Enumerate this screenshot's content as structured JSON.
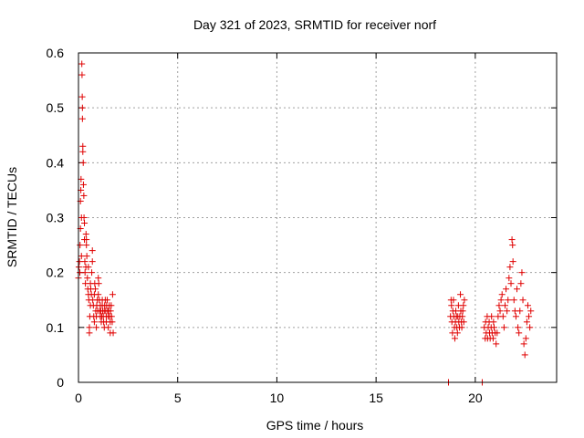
{
  "chart_data": {
    "type": "scatter",
    "title": "Day 321 of 2023, SRMTID for receiver norf",
    "xlabel": "GPS time / hours",
    "ylabel": "SRMTID / TECUs",
    "xlim": [
      0,
      24.1
    ],
    "ylim": [
      0,
      0.6
    ],
    "x_ticks": [
      0,
      5,
      10,
      15,
      20
    ],
    "x_tick_labels": [
      "0",
      "5",
      "10",
      "15",
      "20"
    ],
    "y_ticks": [
      0,
      0.1,
      0.2,
      0.3,
      0.4,
      0.5,
      0.6
    ],
    "y_tick_labels": [
      "0",
      "0.1",
      "0.2",
      "0.3",
      "0.4",
      "0.5",
      "0.6"
    ],
    "grid": true,
    "marker": "+",
    "marker_color": "#e00000",
    "series": [
      {
        "name": "SRMTID",
        "points": [
          [
            0.0,
            0.19
          ],
          [
            0.02,
            0.21
          ],
          [
            0.05,
            0.22
          ],
          [
            0.07,
            0.2
          ],
          [
            0.08,
            0.25
          ],
          [
            0.1,
            0.28
          ],
          [
            0.1,
            0.33
          ],
          [
            0.12,
            0.35
          ],
          [
            0.13,
            0.37
          ],
          [
            0.15,
            0.3
          ],
          [
            0.15,
            0.23
          ],
          [
            0.17,
            0.58
          ],
          [
            0.18,
            0.56
          ],
          [
            0.19,
            0.52
          ],
          [
            0.2,
            0.5
          ],
          [
            0.2,
            0.48
          ],
          [
            0.22,
            0.43
          ],
          [
            0.22,
            0.42
          ],
          [
            0.24,
            0.4
          ],
          [
            0.25,
            0.36
          ],
          [
            0.27,
            0.34
          ],
          [
            0.28,
            0.3
          ],
          [
            0.3,
            0.29
          ],
          [
            0.3,
            0.26
          ],
          [
            0.32,
            0.22
          ],
          [
            0.33,
            0.2
          ],
          [
            0.35,
            0.18
          ],
          [
            0.37,
            0.21
          ],
          [
            0.38,
            0.27
          ],
          [
            0.4,
            0.26
          ],
          [
            0.4,
            0.25
          ],
          [
            0.42,
            0.23
          ],
          [
            0.45,
            0.19
          ],
          [
            0.47,
            0.17
          ],
          [
            0.5,
            0.16
          ],
          [
            0.5,
            0.21
          ],
          [
            0.52,
            0.15
          ],
          [
            0.55,
            0.1
          ],
          [
            0.55,
            0.09
          ],
          [
            0.57,
            0.12
          ],
          [
            0.6,
            0.14
          ],
          [
            0.6,
            0.18
          ],
          [
            0.62,
            0.17
          ],
          [
            0.65,
            0.16
          ],
          [
            0.67,
            0.2
          ],
          [
            0.7,
            0.24
          ],
          [
            0.7,
            0.22
          ],
          [
            0.72,
            0.15
          ],
          [
            0.75,
            0.14
          ],
          [
            0.77,
            0.12
          ],
          [
            0.8,
            0.11
          ],
          [
            0.8,
            0.16
          ],
          [
            0.82,
            0.18
          ],
          [
            0.85,
            0.17
          ],
          [
            0.87,
            0.13
          ],
          [
            0.9,
            0.12
          ],
          [
            0.9,
            0.1
          ],
          [
            0.92,
            0.14
          ],
          [
            0.95,
            0.15
          ],
          [
            0.97,
            0.13
          ],
          [
            1.0,
            0.16
          ],
          [
            1.0,
            0.19
          ],
          [
            1.02,
            0.18
          ],
          [
            1.05,
            0.15
          ],
          [
            1.07,
            0.13
          ],
          [
            1.1,
            0.12
          ],
          [
            1.1,
            0.14
          ],
          [
            1.12,
            0.13
          ],
          [
            1.15,
            0.11
          ],
          [
            1.17,
            0.12
          ],
          [
            1.2,
            0.14
          ],
          [
            1.2,
            0.15
          ],
          [
            1.22,
            0.13
          ],
          [
            1.25,
            0.12
          ],
          [
            1.27,
            0.11
          ],
          [
            1.3,
            0.1
          ],
          [
            1.3,
            0.13
          ],
          [
            1.32,
            0.14
          ],
          [
            1.35,
            0.15
          ],
          [
            1.37,
            0.13
          ],
          [
            1.4,
            0.12
          ],
          [
            1.4,
            0.11
          ],
          [
            1.42,
            0.14
          ],
          [
            1.45,
            0.15
          ],
          [
            1.47,
            0.13
          ],
          [
            1.5,
            0.12
          ],
          [
            1.5,
            0.1
          ],
          [
            1.52,
            0.13
          ],
          [
            1.55,
            0.14
          ],
          [
            1.57,
            0.12
          ],
          [
            1.6,
            0.11
          ],
          [
            1.6,
            0.09
          ],
          [
            1.62,
            0.13
          ],
          [
            1.65,
            0.14
          ],
          [
            1.67,
            0.12
          ],
          [
            1.7,
            0.11
          ],
          [
            1.72,
            0.16
          ],
          [
            1.75,
            0.09
          ],
          [
            18.65,
            0.0
          ],
          [
            20.35,
            0.0
          ],
          [
            18.75,
            0.12
          ],
          [
            18.78,
            0.15
          ],
          [
            18.8,
            0.14
          ],
          [
            18.82,
            0.11
          ],
          [
            18.85,
            0.09
          ],
          [
            18.87,
            0.13
          ],
          [
            18.9,
            0.15
          ],
          [
            18.92,
            0.12
          ],
          [
            18.95,
            0.1
          ],
          [
            18.97,
            0.08
          ],
          [
            19.0,
            0.11
          ],
          [
            19.02,
            0.13
          ],
          [
            19.05,
            0.12
          ],
          [
            19.07,
            0.1
          ],
          [
            19.1,
            0.09
          ],
          [
            19.12,
            0.12
          ],
          [
            19.15,
            0.14
          ],
          [
            19.17,
            0.11
          ],
          [
            19.2,
            0.1
          ],
          [
            19.22,
            0.12
          ],
          [
            19.25,
            0.16
          ],
          [
            19.27,
            0.13
          ],
          [
            19.3,
            0.11
          ],
          [
            19.32,
            0.1
          ],
          [
            19.35,
            0.12
          ],
          [
            19.37,
            0.13
          ],
          [
            19.4,
            0.14
          ],
          [
            19.42,
            0.11
          ],
          [
            19.45,
            0.15
          ],
          [
            20.45,
            0.1
          ],
          [
            20.5,
            0.08
          ],
          [
            20.52,
            0.11
          ],
          [
            20.55,
            0.09
          ],
          [
            20.6,
            0.12
          ],
          [
            20.62,
            0.08
          ],
          [
            20.65,
            0.1
          ],
          [
            20.7,
            0.11
          ],
          [
            20.72,
            0.09
          ],
          [
            20.75,
            0.08
          ],
          [
            20.8,
            0.1
          ],
          [
            20.82,
            0.12
          ],
          [
            20.85,
            0.09
          ],
          [
            20.9,
            0.08
          ],
          [
            20.92,
            0.11
          ],
          [
            20.95,
            0.1
          ],
          [
            21.0,
            0.09
          ],
          [
            21.05,
            0.07
          ],
          [
            21.1,
            0.09
          ],
          [
            21.15,
            0.12
          ],
          [
            21.2,
            0.14
          ],
          [
            21.25,
            0.13
          ],
          [
            21.3,
            0.15
          ],
          [
            21.35,
            0.16
          ],
          [
            21.4,
            0.12
          ],
          [
            21.45,
            0.1
          ],
          [
            21.5,
            0.14
          ],
          [
            21.55,
            0.17
          ],
          [
            21.6,
            0.13
          ],
          [
            21.65,
            0.15
          ],
          [
            21.7,
            0.19
          ],
          [
            21.75,
            0.21
          ],
          [
            21.8,
            0.18
          ],
          [
            21.85,
            0.26
          ],
          [
            21.88,
            0.25
          ],
          [
            21.9,
            0.22
          ],
          [
            21.95,
            0.15
          ],
          [
            22.0,
            0.13
          ],
          [
            22.05,
            0.12
          ],
          [
            22.1,
            0.17
          ],
          [
            22.15,
            0.1
          ],
          [
            22.2,
            0.09
          ],
          [
            22.25,
            0.13
          ],
          [
            22.3,
            0.18
          ],
          [
            22.35,
            0.2
          ],
          [
            22.4,
            0.15
          ],
          [
            22.45,
            0.07
          ],
          [
            22.5,
            0.05
          ],
          [
            22.55,
            0.08
          ],
          [
            22.6,
            0.11
          ],
          [
            22.65,
            0.14
          ],
          [
            22.7,
            0.12
          ],
          [
            22.75,
            0.1
          ],
          [
            22.8,
            0.13
          ]
        ]
      }
    ]
  }
}
